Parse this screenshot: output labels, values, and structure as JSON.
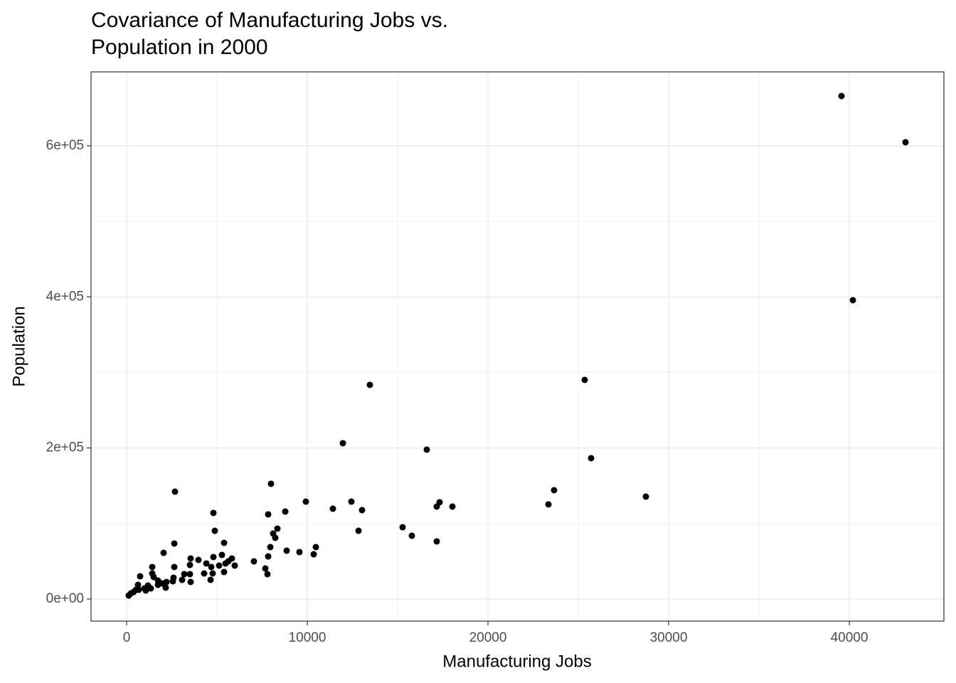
{
  "chart_data": {
    "type": "scatter",
    "title": [
      "Covariance of Manufacturing Jobs vs.",
      "Population in 2000"
    ],
    "x_label": "Manufacturing Jobs",
    "y_label": "Population",
    "color": "#000000",
    "grid": true,
    "xlim": [
      -1969,
      45236
    ],
    "ylim": [
      -29200,
      697900
    ],
    "xticks": [
      0,
      10000,
      20000,
      30000,
      40000
    ],
    "xminorticks": [
      5000,
      15000,
      25000,
      35000
    ],
    "yticks": [
      {
        "value": 0,
        "label": "0e+00"
      },
      {
        "value": 200000,
        "label": "2e+05"
      },
      {
        "value": 400000,
        "label": "4e+05"
      },
      {
        "value": 600000,
        "label": "6e+05"
      }
    ],
    "yminorticks": [
      100000,
      300000,
      500000
    ],
    "x": [
      39567,
      43110,
      40197,
      25354,
      13465,
      25709,
      28740,
      11969,
      16614,
      23661,
      23346,
      17323,
      17165,
      18031,
      17165,
      15276,
      15787,
      12441,
      13031,
      12835,
      11417,
      9921,
      10472,
      10354,
      9567,
      8858,
      8780,
      7992,
      7835,
      8346,
      8110,
      8228,
      7953,
      7835,
      7677,
      7795,
      7047,
      5984,
      5827,
      5630,
      5394,
      5276,
      5394,
      5472,
      5118,
      4803,
      4882,
      4803,
      4685,
      4764,
      4646,
      4409,
      4291,
      3976,
      3543,
      3504,
      3504,
      3543,
      3189,
      3071,
      2677,
      2638,
      2638,
      2598,
      2559,
      2047,
      2205,
      2165,
      1969,
      1732,
      1417,
      1417,
      1496,
      1339,
      1181,
      1063,
      748,
      630,
      669,
      512,
      394,
      236,
      118,
      984,
      1732
    ],
    "values": [
      665900,
      604700,
      395600,
      290100,
      283500,
      186500,
      135600,
      206300,
      197800,
      144100,
      125300,
      128100,
      122400,
      122400,
      76300,
      95100,
      83800,
      129000,
      117700,
      90400,
      119600,
      129000,
      68800,
      59300,
      62200,
      64000,
      115800,
      152600,
      112100,
      93200,
      86700,
      81000,
      68800,
      56500,
      40500,
      33000,
      49900,
      44300,
      53700,
      49900,
      74400,
      58400,
      35800,
      47100,
      44300,
      114000,
      90400,
      55600,
      42400,
      33900,
      25400,
      47100,
      33900,
      51800,
      53700,
      45200,
      33000,
      22600,
      33000,
      25400,
      142200,
      73500,
      42400,
      28300,
      23500,
      61200,
      22600,
      15100,
      20700,
      18800,
      42400,
      33900,
      29200,
      14100,
      17900,
      11300,
      30100,
      18800,
      12200,
      12200,
      9400,
      7500,
      4700,
      14100,
      24500
    ]
  }
}
